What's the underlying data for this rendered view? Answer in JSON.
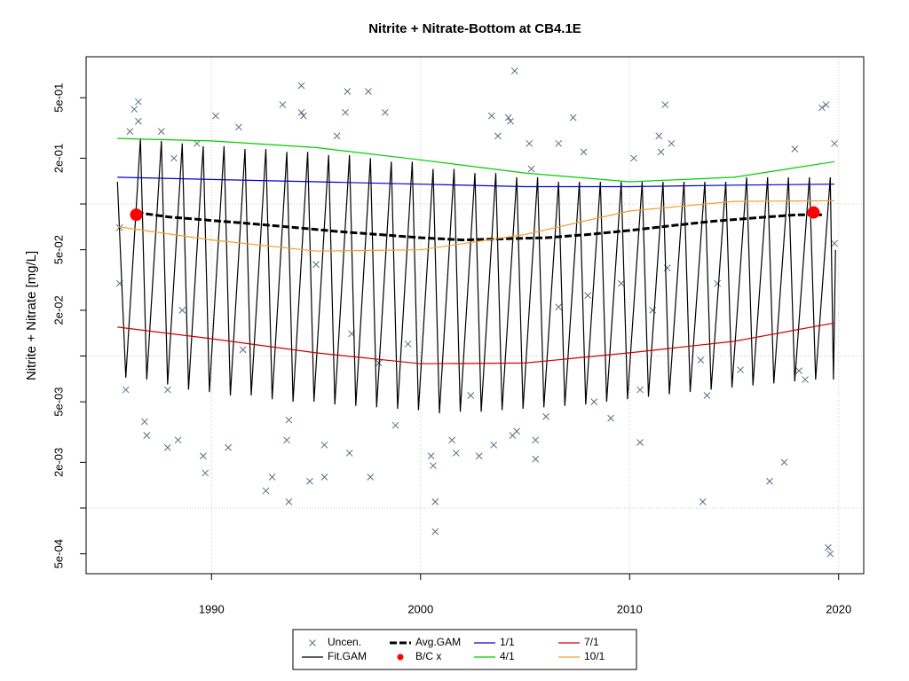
{
  "chart_data": {
    "type": "scatter-line",
    "title": "Nitrite + Nitrate-Bottom at CB4.1E",
    "y_label": "Nitrite + Nitrate [mg/L]",
    "log_y": true,
    "grid": true,
    "legend_position": "bottom",
    "xlim": [
      1984.0,
      2021.2
    ],
    "xticks": [
      1990,
      2000,
      2010,
      2020
    ],
    "ylim": [
      0.00037,
      0.93
    ],
    "yticks": [
      {
        "value": 0.5,
        "label": "5e-01"
      },
      {
        "value": 0.2,
        "label": "2e-01"
      },
      {
        "value": 0.05,
        "label": "5e-02"
      },
      {
        "value": 0.02,
        "label": "2e-02"
      },
      {
        "value": 0.005,
        "label": "5e-03"
      },
      {
        "value": 0.002,
        "label": "2e-03"
      },
      {
        "value": 0.0005,
        "label": "5e-04"
      }
    ],
    "ygrid": [
      0.1,
      0.01,
      0.001
    ],
    "series": [
      {
        "name": "Uncen.",
        "color": "#5a6b88",
        "mark": "x",
        "x": [
          1985.6,
          1985.6,
          1985.9,
          1986.1,
          1986.3,
          1986.5,
          1986.5,
          1986.8,
          1986.9,
          1987.6,
          1987.9,
          1987.9,
          1988.2,
          1988.4,
          1988.6,
          1989.3,
          1989.6,
          1989.7,
          1990.2,
          1990.8,
          1991.3,
          1991.5,
          1992.6,
          1992.9,
          1993.4,
          1993.6,
          1993.7,
          1993.7,
          1994.3,
          1994.3,
          1994.4,
          1994.7,
          1995.0,
          1995.4,
          1995.4,
          1996.0,
          1996.4,
          1996.5,
          1996.6,
          1996.7,
          1997.5,
          1997.6,
          1998.0,
          1998.3,
          1998.8,
          1999.4,
          2000.5,
          2000.6,
          2000.7,
          2000.7,
          2001.5,
          2001.7,
          2002.4,
          2002.8,
          2003.4,
          2003.5,
          2003.7,
          2004.2,
          2004.3,
          2004.5,
          2004.4,
          2004.6,
          2005.2,
          2005.3,
          2005.5,
          2005.5,
          2006.0,
          2006.6,
          2006.6,
          2007.3,
          2007.8,
          2008.0,
          2008.3,
          2009.1,
          2009.6,
          2010.2,
          2010.5,
          2010.5,
          2011.1,
          2011.4,
          2011.5,
          2011.7,
          2011.8,
          2012.0,
          2013.4,
          2013.5,
          2013.7,
          2014.2,
          2015.3,
          2016.7,
          2017.4,
          2017.9,
          2018.1,
          2018.4,
          2019.2,
          2019.4,
          2019.5,
          2019.6,
          2019.8,
          2019.8
        ],
        "values": [
          0.07,
          0.03,
          0.006,
          0.3,
          0.42,
          0.47,
          0.35,
          0.0037,
          0.003,
          0.3,
          0.0025,
          0.006,
          0.2,
          0.0028,
          0.02,
          0.25,
          0.0022,
          0.0017,
          0.38,
          0.0025,
          0.32,
          0.011,
          0.0013,
          0.0016,
          0.45,
          0.0028,
          0.0011,
          0.0038,
          0.6,
          0.4,
          0.38,
          0.0015,
          0.04,
          0.0016,
          0.0026,
          0.28,
          0.4,
          0.55,
          0.0023,
          0.014,
          0.55,
          0.0016,
          0.009,
          0.4,
          0.0035,
          0.012,
          0.0022,
          0.0019,
          0.0011,
          0.0007,
          0.0028,
          0.0023,
          0.0055,
          0.0022,
          0.38,
          0.0026,
          0.28,
          0.37,
          0.35,
          0.75,
          0.003,
          0.0032,
          0.25,
          0.17,
          0.0021,
          0.0028,
          0.004,
          0.021,
          0.25,
          0.37,
          0.22,
          0.025,
          0.005,
          0.0039,
          0.03,
          0.2,
          0.0027,
          0.006,
          0.02,
          0.28,
          0.22,
          0.45,
          0.038,
          0.25,
          0.0094,
          0.0011,
          0.0055,
          0.03,
          0.0081,
          0.0015,
          0.002,
          0.23,
          0.008,
          0.007,
          0.43,
          0.45,
          0.00055,
          0.0005,
          0.25,
          0.055
        ]
      },
      {
        "name": "Fit.GAM",
        "color": "#000000",
        "mark": "line",
        "x": [
          1985.5,
          1985.9,
          1986.6,
          1986.9,
          1987.6,
          1987.9,
          1988.6,
          1988.9,
          1989.6,
          1989.9,
          1990.6,
          1990.9,
          1991.6,
          1991.9,
          1992.6,
          1992.9,
          1993.6,
          1993.9,
          1994.6,
          1994.9,
          1995.6,
          1995.9,
          1996.6,
          1996.9,
          1997.6,
          1997.9,
          1998.6,
          1998.9,
          1999.6,
          1999.9,
          2000.6,
          2000.9,
          2001.6,
          2001.9,
          2002.6,
          2002.9,
          2003.6,
          2003.9,
          2004.6,
          2004.9,
          2005.6,
          2005.9,
          2006.6,
          2006.9,
          2007.6,
          2007.9,
          2008.6,
          2008.9,
          2009.6,
          2009.9,
          2010.6,
          2010.9,
          2011.6,
          2011.9,
          2012.6,
          2012.9,
          2013.6,
          2013.9,
          2014.6,
          2014.9,
          2015.6,
          2015.9,
          2016.6,
          2016.9,
          2017.6,
          2017.9,
          2018.6,
          2018.9,
          2019.6,
          2019.75,
          2019.85
        ],
        "values": [
          0.14,
          0.0072,
          0.27,
          0.007,
          0.26,
          0.0065,
          0.25,
          0.006,
          0.24,
          0.0058,
          0.24,
          0.0055,
          0.23,
          0.0055,
          0.23,
          0.0052,
          0.22,
          0.005,
          0.22,
          0.005,
          0.21,
          0.0048,
          0.21,
          0.0047,
          0.2,
          0.0046,
          0.19,
          0.0045,
          0.19,
          0.0044,
          0.17,
          0.0042,
          0.17,
          0.0043,
          0.16,
          0.0043,
          0.16,
          0.0044,
          0.15,
          0.0045,
          0.15,
          0.0046,
          0.14,
          0.0047,
          0.14,
          0.0048,
          0.14,
          0.005,
          0.14,
          0.0052,
          0.14,
          0.0054,
          0.14,
          0.0056,
          0.14,
          0.0058,
          0.14,
          0.006,
          0.14,
          0.0062,
          0.15,
          0.0064,
          0.15,
          0.0066,
          0.15,
          0.0068,
          0.15,
          0.007,
          0.15,
          0.007,
          0.05
        ]
      },
      {
        "name": "Avg.GAM",
        "color": "#000000",
        "mark": "dash",
        "x": [
          1986.4,
          1988,
          1990,
          1992,
          1994,
          1996,
          1998,
          2000,
          2002,
          2004,
          2006,
          2008,
          2010,
          2012,
          2014,
          2016,
          2018,
          2019.2
        ],
        "values": [
          0.088,
          0.082,
          0.078,
          0.074,
          0.07,
          0.066,
          0.063,
          0.06,
          0.058,
          0.059,
          0.06,
          0.063,
          0.067,
          0.072,
          0.077,
          0.081,
          0.085,
          0.085
        ]
      },
      {
        "name": "B/C x",
        "color": "#ff0000",
        "mark": "dot",
        "x": [
          1986.4,
          2018.8
        ],
        "values": [
          0.085,
          0.088
        ]
      },
      {
        "name": "1/1",
        "color": "#0000cd",
        "mark": "line",
        "x": [
          1985.5,
          1990,
          1995,
          2000,
          2005,
          2010,
          2015,
          2019.8
        ],
        "values": [
          0.15,
          0.145,
          0.14,
          0.135,
          0.13,
          0.13,
          0.133,
          0.135
        ]
      },
      {
        "name": "4/1",
        "color": "#00cd00",
        "mark": "line",
        "x": [
          1985.5,
          1990,
          1995,
          2000,
          2005,
          2010,
          2015,
          2019.8
        ],
        "values": [
          0.27,
          0.26,
          0.235,
          0.195,
          0.16,
          0.14,
          0.15,
          0.19
        ]
      },
      {
        "name": "7/1",
        "color": "#cd0000",
        "mark": "line",
        "x": [
          1985.5,
          1990,
          1995,
          2000,
          2005,
          2010,
          2015,
          2019.8
        ],
        "values": [
          0.0155,
          0.013,
          0.0105,
          0.0089,
          0.009,
          0.0105,
          0.0125,
          0.0165
        ]
      },
      {
        "name": "10/1",
        "color": "#f0a030",
        "mark": "line",
        "x": [
          1985.5,
          1990,
          1995,
          2000,
          2005,
          2010,
          2015,
          2019.8
        ],
        "values": [
          0.071,
          0.058,
          0.049,
          0.05,
          0.063,
          0.09,
          0.104,
          0.105
        ]
      }
    ]
  }
}
